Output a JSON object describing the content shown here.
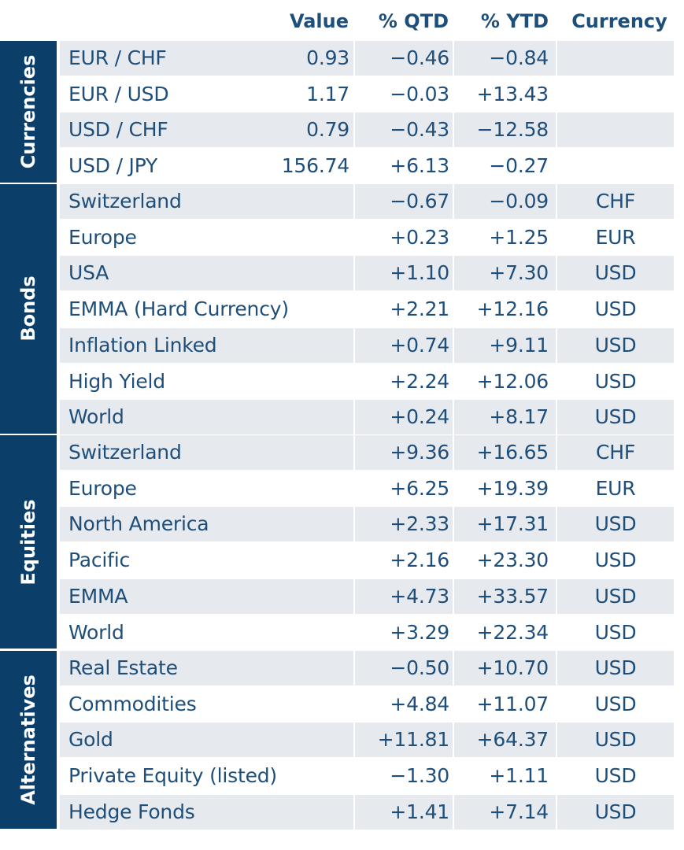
{
  "header": {
    "value": "Value",
    "qtd": "% QTD",
    "ytd": "% YTD",
    "currency": "Currency"
  },
  "groups": [
    {
      "label": "Currencies",
      "rows": [
        {
          "name": "EUR / CHF",
          "value": "0.93",
          "qtd": "−0.46",
          "ytd": "−0.84",
          "currency": ""
        },
        {
          "name": "EUR / USD",
          "value": "1.17",
          "qtd": "−0.03",
          "ytd": "+13.43",
          "currency": ""
        },
        {
          "name": "USD / CHF",
          "value": "0.79",
          "qtd": "−0.43",
          "ytd": "−12.58",
          "currency": ""
        },
        {
          "name": "USD / JPY",
          "value": "156.74",
          "qtd": "+6.13",
          "ytd": "−0.27",
          "currency": ""
        }
      ]
    },
    {
      "label": "Bonds",
      "rows": [
        {
          "name": "Switzerland",
          "value": "",
          "qtd": "−0.67",
          "ytd": "−0.09",
          "currency": "CHF"
        },
        {
          "name": "Europe",
          "value": "",
          "qtd": "+0.23",
          "ytd": "+1.25",
          "currency": "EUR"
        },
        {
          "name": "USA",
          "value": "",
          "qtd": "+1.10",
          "ytd": "+7.30",
          "currency": "USD"
        },
        {
          "name": "EMMA (Hard Currency)",
          "value": "",
          "qtd": "+2.21",
          "ytd": "+12.16",
          "currency": "USD"
        },
        {
          "name": "Inflation Linked",
          "value": "",
          "qtd": "+0.74",
          "ytd": "+9.11",
          "currency": "USD"
        },
        {
          "name": "High Yield",
          "value": "",
          "qtd": "+2.24",
          "ytd": "+12.06",
          "currency": "USD"
        },
        {
          "name": "World",
          "value": "",
          "qtd": "+0.24",
          "ytd": "+8.17",
          "currency": "USD"
        }
      ]
    },
    {
      "label": "Equities",
      "rows": [
        {
          "name": "Switzerland",
          "value": "",
          "qtd": "+9.36",
          "ytd": "+16.65",
          "currency": "CHF"
        },
        {
          "name": "Europe",
          "value": "",
          "qtd": "+6.25",
          "ytd": "+19.39",
          "currency": "EUR"
        },
        {
          "name": "North America",
          "value": "",
          "qtd": "+2.33",
          "ytd": "+17.31",
          "currency": "USD"
        },
        {
          "name": "Pacific",
          "value": "",
          "qtd": "+2.16",
          "ytd": "+23.30",
          "currency": "USD"
        },
        {
          "name": "EMMA",
          "value": "",
          "qtd": "+4.73",
          "ytd": "+33.57",
          "currency": "USD"
        },
        {
          "name": "World",
          "value": "",
          "qtd": "+3.29",
          "ytd": "+22.34",
          "currency": "USD"
        }
      ]
    },
    {
      "label": "Alternatives",
      "rows": [
        {
          "name": "Real Estate",
          "value": "",
          "qtd": "−0.50",
          "ytd": "+10.70",
          "currency": "USD"
        },
        {
          "name": "Commodities",
          "value": "",
          "qtd": "+4.84",
          "ytd": "+11.07",
          "currency": "USD"
        },
        {
          "name": "Gold",
          "value": "",
          "qtd": "+11.81",
          "ytd": "+64.37",
          "currency": "USD"
        },
        {
          "name": "Private Equity (listed)",
          "value": "",
          "qtd": "−1.30",
          "ytd": "+1.11",
          "currency": "USD"
        },
        {
          "name": "Hedge Fonds",
          "value": "",
          "qtd": "+1.41",
          "ytd": "+7.14",
          "currency": "USD"
        }
      ]
    }
  ],
  "colors": {
    "band": "#0c3e6a",
    "text": "#1e4e7a",
    "shade": "#e6e9ee"
  }
}
